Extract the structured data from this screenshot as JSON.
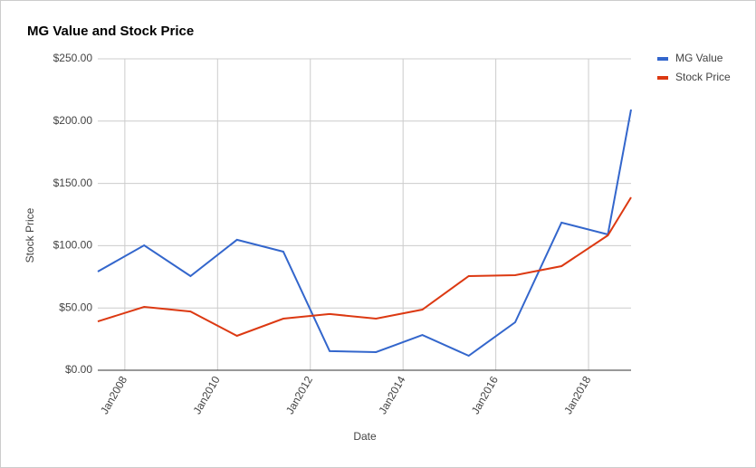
{
  "chart_data": {
    "type": "line",
    "title": "MG Value and Stock Price",
    "x_label": "Date",
    "y_label": "Stock Price",
    "x": [
      "2007-06",
      "2008-06",
      "2009-06",
      "2010-06",
      "2011-06",
      "2012-06",
      "2013-06",
      "2014-06",
      "2015-06",
      "2016-06",
      "2017-06",
      "2018-06",
      "2018-12"
    ],
    "series": [
      {
        "name": "MG Value",
        "color": "#3366cc",
        "values": [
          79.2,
          100.3,
          75.6,
          104.7,
          95.2,
          15.3,
          14.5,
          28.3,
          11.6,
          38.5,
          118.5,
          109,
          209.3
        ]
      },
      {
        "name": "Stock Price",
        "color": "#dc3912",
        "values": [
          39.2,
          50.9,
          47.2,
          27.6,
          41.4,
          45.1,
          41.4,
          48.7,
          75.6,
          76.3,
          83.6,
          108.3,
          138.8
        ]
      }
    ],
    "xlim": [
      "2007-06",
      "2018-12"
    ],
    "xticks": [
      {
        "value": "2008-01",
        "label": "Jan2008"
      },
      {
        "value": "2010-01",
        "label": "Jan2010"
      },
      {
        "value": "2012-01",
        "label": "Jan2012"
      },
      {
        "value": "2014-01",
        "label": "Jan2014"
      },
      {
        "value": "2016-01",
        "label": "Jan2016"
      },
      {
        "value": "2018-01",
        "label": "Jan2018"
      }
    ],
    "ylim": [
      0,
      250
    ],
    "yticks": [
      {
        "value": 0,
        "label": "$0.00"
      },
      {
        "value": 50,
        "label": "$50.00"
      },
      {
        "value": 100,
        "label": "$100.00"
      },
      {
        "value": 150,
        "label": "$150.00"
      },
      {
        "value": 200,
        "label": "$200.00"
      },
      {
        "value": 250,
        "label": "$250.00"
      }
    ],
    "grid": true,
    "legend": "right"
  }
}
